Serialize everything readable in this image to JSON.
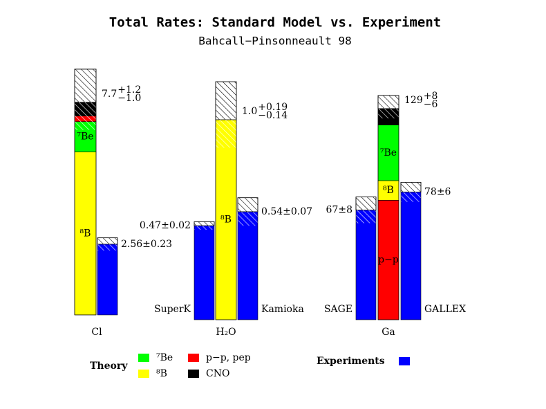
{
  "chart_data": {
    "type": "stacked-bar",
    "title": "Total Rates: Standard Model vs. Experiment",
    "subtitle": "Bahcall−Pinsonneault 98",
    "sources": [
      {
        "name": "⁷Be",
        "color": "#00ff00"
      },
      {
        "name": "⁸B",
        "color": "#ffff00"
      },
      {
        "name": "p−p, pep",
        "color": "#ff0000"
      },
      {
        "name": "CNO",
        "color": "#000000"
      }
    ],
    "theory_legend": "Theory",
    "experiment_legend": {
      "label": "Experiments",
      "color": "#0000ff"
    },
    "groups": [
      {
        "name": "Cl",
        "theory": {
          "value": 7.7,
          "err_plus": 1.2,
          "plus_label": "+1.2",
          "err_minus": 1.0,
          "minus_label": "−1.0",
          "segments": [
            {
              "source": "⁸B",
              "value": 5.9,
              "label": "⁸B"
            },
            {
              "source": "⁷Be",
              "value": 1.1,
              "label": "⁷Be"
            },
            {
              "source": "p−p, pep",
              "value": 0.2
            },
            {
              "source": "CNO",
              "value": 0.5
            }
          ]
        },
        "experiments": [
          {
            "value": 2.56,
            "error": 0.23,
            "value_label": "2.56±0.23"
          }
        ]
      },
      {
        "name": "H₂O",
        "theory": {
          "value": 1.0,
          "value_label": "1.0",
          "err_plus": 0.19,
          "plus_label": "+0.19",
          "err_minus": 0.14,
          "minus_label": "−0.14",
          "segments": [
            {
              "source": "⁸B",
              "value": 1.0,
              "label": "⁸B"
            }
          ]
        },
        "experiments": [
          {
            "name": "SuperK",
            "value": 0.47,
            "error": 0.02,
            "value_label": "0.47±0.02"
          },
          {
            "name": "Kamioka",
            "value": 0.54,
            "error": 0.07,
            "value_label": "0.54±0.07"
          }
        ]
      },
      {
        "name": "Ga",
        "theory": {
          "value": 129,
          "err_plus": 8,
          "plus_label": "+8",
          "err_minus": 6,
          "minus_label": "−6",
          "segments": [
            {
              "source": "p−p, pep",
              "value": 73,
              "label": "p−p"
            },
            {
              "source": "⁸B",
              "value": 12,
              "label": "⁸B"
            },
            {
              "source": "⁷Be",
              "value": 34,
              "label": "⁷Be"
            },
            {
              "source": "CNO",
              "value": 10
            }
          ]
        },
        "experiments": [
          {
            "name": "SAGE",
            "value": 67,
            "error": 8,
            "value_label": "67±8"
          },
          {
            "name": "GALLEX",
            "value": 78,
            "error": 6,
            "value_label": "78±6"
          }
        ]
      }
    ]
  }
}
